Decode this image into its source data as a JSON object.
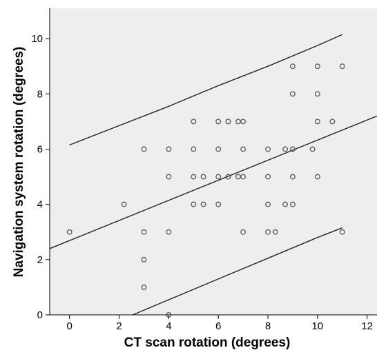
{
  "chart_data": {
    "type": "scatter",
    "xlabel": "CT scan rotation (degrees)",
    "ylabel": "Navigation system rotation (degrees)",
    "xlim": [
      -0.8,
      12.4
    ],
    "ylim": [
      0,
      11.1
    ],
    "xticks": [
      0,
      2,
      4,
      6,
      8,
      10,
      12
    ],
    "yticks": [
      0,
      2,
      4,
      6,
      8,
      10
    ],
    "grid": false,
    "plot_background": "#eeeeee",
    "point_color": "#555555",
    "line_color": "#222222",
    "points": [
      {
        "x": 0,
        "y": 3
      },
      {
        "x": 2.2,
        "y": 4
      },
      {
        "x": 3,
        "y": 6
      },
      {
        "x": 3,
        "y": 3
      },
      {
        "x": 3,
        "y": 2
      },
      {
        "x": 3,
        "y": 1
      },
      {
        "x": 4,
        "y": 6
      },
      {
        "x": 4,
        "y": 5
      },
      {
        "x": 4,
        "y": 3
      },
      {
        "x": 4,
        "y": 0
      },
      {
        "x": 5,
        "y": 7
      },
      {
        "x": 5,
        "y": 6
      },
      {
        "x": 5,
        "y": 5
      },
      {
        "x": 5,
        "y": 4
      },
      {
        "x": 5.4,
        "y": 5
      },
      {
        "x": 5.4,
        "y": 4
      },
      {
        "x": 6,
        "y": 7
      },
      {
        "x": 6,
        "y": 6
      },
      {
        "x": 6,
        "y": 5
      },
      {
        "x": 6,
        "y": 4
      },
      {
        "x": 6.4,
        "y": 7
      },
      {
        "x": 6.4,
        "y": 5
      },
      {
        "x": 6.8,
        "y": 7
      },
      {
        "x": 6.8,
        "y": 5
      },
      {
        "x": 7,
        "y": 7
      },
      {
        "x": 7,
        "y": 6
      },
      {
        "x": 7,
        "y": 5
      },
      {
        "x": 7,
        "y": 3
      },
      {
        "x": 8,
        "y": 6
      },
      {
        "x": 8,
        "y": 5
      },
      {
        "x": 8,
        "y": 4
      },
      {
        "x": 8,
        "y": 3
      },
      {
        "x": 8.3,
        "y": 3
      },
      {
        "x": 8.7,
        "y": 6
      },
      {
        "x": 8.7,
        "y": 4
      },
      {
        "x": 9,
        "y": 9
      },
      {
        "x": 9,
        "y": 8
      },
      {
        "x": 9,
        "y": 6
      },
      {
        "x": 9,
        "y": 5
      },
      {
        "x": 9,
        "y": 4
      },
      {
        "x": 9.8,
        "y": 6
      },
      {
        "x": 10,
        "y": 9
      },
      {
        "x": 10,
        "y": 8
      },
      {
        "x": 10,
        "y": 7
      },
      {
        "x": 10,
        "y": 5
      },
      {
        "x": 10.6,
        "y": 7
      },
      {
        "x": 11,
        "y": 9
      },
      {
        "x": 11,
        "y": 3
      }
    ],
    "regression_line": {
      "x": [
        -0.8,
        12.4
      ],
      "y": [
        2.4,
        7.2
      ]
    },
    "upper_prediction_curve": {
      "x": [
        0,
        2,
        4,
        6,
        8,
        10,
        11
      ],
      "y": [
        6.15,
        6.85,
        7.55,
        8.3,
        9.0,
        9.75,
        10.15
      ]
    },
    "lower_prediction_curve": {
      "x": [
        2.55,
        4,
        6,
        8,
        10,
        11
      ],
      "y": [
        0,
        0.55,
        1.3,
        2.05,
        2.8,
        3.15
      ]
    }
  }
}
